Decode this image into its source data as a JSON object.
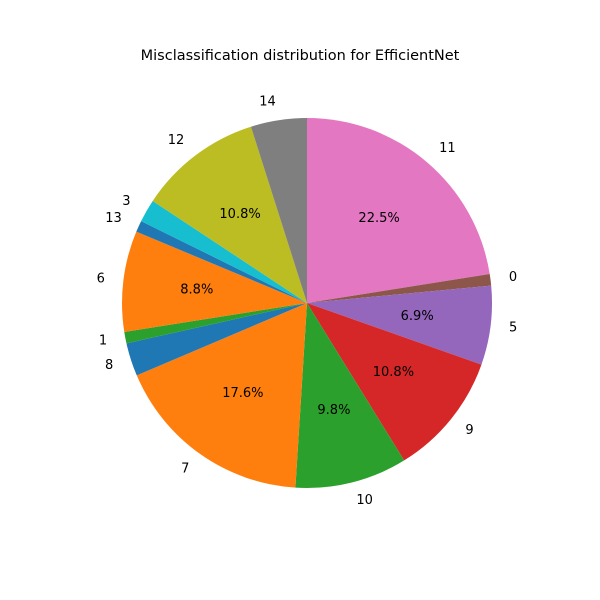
{
  "chart_data": {
    "type": "pie",
    "title": "Misclassification distribution for EfficientNet",
    "slices": [
      {
        "label": "11",
        "percent": 22.5,
        "show_percent": true,
        "color": "#e377c2"
      },
      {
        "label": "0",
        "percent": 1.0,
        "show_percent": false,
        "color": "#8c564b"
      },
      {
        "label": "5",
        "percent": 6.9,
        "show_percent": true,
        "color": "#9467bd"
      },
      {
        "label": "9",
        "percent": 10.8,
        "show_percent": true,
        "color": "#d62728"
      },
      {
        "label": "10",
        "percent": 9.8,
        "show_percent": true,
        "color": "#2ca02c"
      },
      {
        "label": "7",
        "percent": 17.6,
        "show_percent": true,
        "color": "#ff7f0e"
      },
      {
        "label": "8",
        "percent": 2.9,
        "show_percent": false,
        "color": "#1f77b4"
      },
      {
        "label": "1",
        "percent": 1.0,
        "show_percent": false,
        "color": "#2ca02c"
      },
      {
        "label": "6",
        "percent": 8.8,
        "show_percent": true,
        "color": "#ff7f0e"
      },
      {
        "label": "13",
        "percent": 1.0,
        "show_percent": false,
        "color": "#1f77b4"
      },
      {
        "label": "3",
        "percent": 2.0,
        "show_percent": false,
        "color": "#17becf"
      },
      {
        "label": "12",
        "percent": 10.8,
        "show_percent": true,
        "color": "#bcbd22"
      },
      {
        "label": "14",
        "percent": 4.9,
        "show_percent": false,
        "color": "#7f7f7f"
      }
    ]
  }
}
